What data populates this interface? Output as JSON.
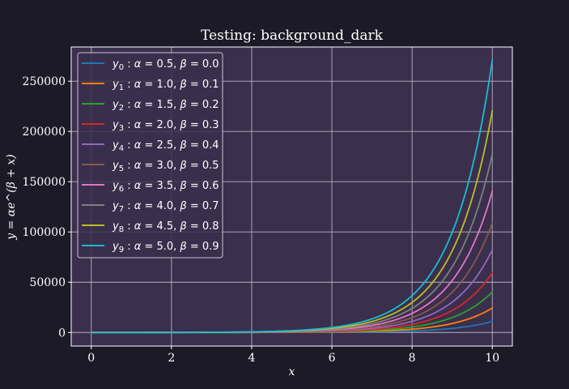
{
  "chart_data": {
    "type": "line",
    "title": "Testing: background_dark",
    "xlabel": "x",
    "ylabel": "y = αe^(β + x)",
    "xlim": [
      -0.5,
      10.5
    ],
    "ylim": [
      -13500,
      284000
    ],
    "xticks": [
      0,
      2,
      4,
      6,
      8,
      10
    ],
    "xtick_labels": [
      "0",
      "2",
      "4",
      "6",
      "8",
      "10"
    ],
    "yticks": [
      0,
      50000,
      100000,
      150000,
      200000,
      250000
    ],
    "ytick_labels": [
      "0",
      "50000",
      "100000",
      "150000",
      "200000",
      "250000"
    ],
    "grid": true,
    "legend_position": "upper-left",
    "function": "alpha * exp(beta + x)",
    "x_range": [
      0,
      10
    ],
    "series": [
      {
        "name": "y_0 : α = 0.5, β = 0.0",
        "alpha": 0.5,
        "beta": 0.0,
        "color": "#1f77b4"
      },
      {
        "name": "y_1 : α = 1.0, β = 0.1",
        "alpha": 1.0,
        "beta": 0.1,
        "color": "#ff7f0e"
      },
      {
        "name": "y_2 : α = 1.5, β = 0.2",
        "alpha": 1.5,
        "beta": 0.2,
        "color": "#2ca02c"
      },
      {
        "name": "y_3 : α = 2.0, β = 0.3",
        "alpha": 2.0,
        "beta": 0.3,
        "color": "#d62728"
      },
      {
        "name": "y_4 : α = 2.5, β = 0.4",
        "alpha": 2.5,
        "beta": 0.4,
        "color": "#9467bd"
      },
      {
        "name": "y_5 : α = 3.0, β = 0.5",
        "alpha": 3.0,
        "beta": 0.5,
        "color": "#8c564b"
      },
      {
        "name": "y_6 : α = 3.5, β = 0.6",
        "alpha": 3.5,
        "beta": 0.6,
        "color": "#e377c2"
      },
      {
        "name": "y_7 : α = 4.0, β = 0.7",
        "alpha": 4.0,
        "beta": 0.7,
        "color": "#7f7f7f"
      },
      {
        "name": "y_8 : α = 4.5, β = 0.8",
        "alpha": 4.5,
        "beta": 0.8,
        "color": "#bcbd22"
      },
      {
        "name": "y_9 : α = 5.0, β = 0.9",
        "alpha": 5.0,
        "beta": 0.9,
        "color": "#17becf"
      }
    ],
    "legend_labels": [
      {
        "sym": "y",
        "sub": "0",
        "alpha": "0.5",
        "beta": "0.0"
      },
      {
        "sym": "y",
        "sub": "1",
        "alpha": "1.0",
        "beta": "0.1"
      },
      {
        "sym": "y",
        "sub": "2",
        "alpha": "1.5",
        "beta": "0.2"
      },
      {
        "sym": "y",
        "sub": "3",
        "alpha": "2.0",
        "beta": "0.3"
      },
      {
        "sym": "y",
        "sub": "4",
        "alpha": "2.5",
        "beta": "0.4"
      },
      {
        "sym": "y",
        "sub": "5",
        "alpha": "3.0",
        "beta": "0.5"
      },
      {
        "sym": "y",
        "sub": "6",
        "alpha": "3.5",
        "beta": "0.6"
      },
      {
        "sym": "y",
        "sub": "7",
        "alpha": "4.0",
        "beta": "0.7"
      },
      {
        "sym": "y",
        "sub": "8",
        "alpha": "4.5",
        "beta": "0.8"
      },
      {
        "sym": "y",
        "sub": "9",
        "alpha": "5.0",
        "beta": "0.9"
      }
    ]
  },
  "colors": {
    "figure_background": "#1c1a27",
    "axes_background": "#3a2f4d",
    "grid": "#b8b3c2",
    "text": "#ffffff"
  }
}
